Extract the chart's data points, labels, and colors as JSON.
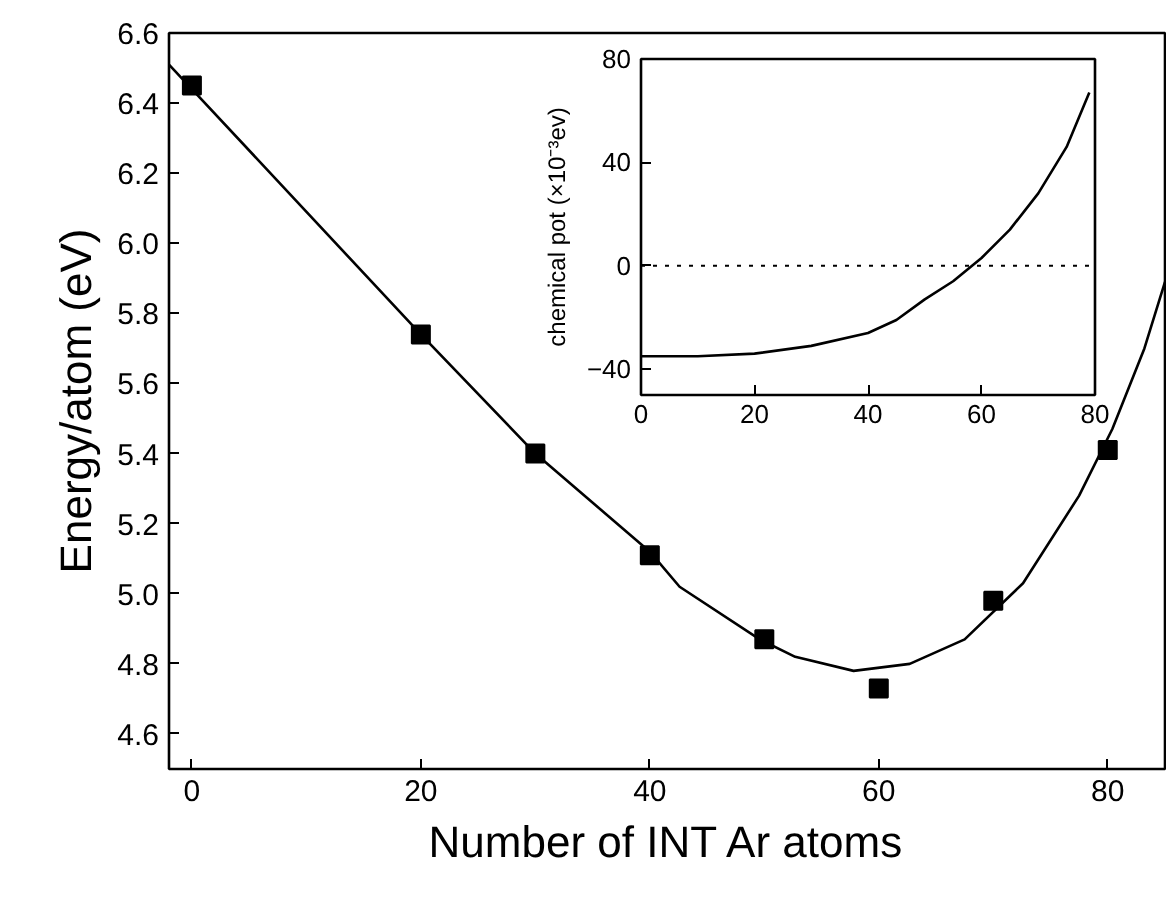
{
  "chart_data": [
    {
      "type": "scatter",
      "xlabel": "Number of INT Ar atoms",
      "ylabel": "Energy/atom (eV)",
      "xlim": [
        -2,
        85
      ],
      "ylim": [
        4.5,
        6.6
      ],
      "xticks": [
        0,
        20,
        40,
        60,
        80
      ],
      "yticks": [
        {
          "value": 4.6,
          "label": "4.6"
        },
        {
          "value": 4.8,
          "label": "4.8"
        },
        {
          "value": 5.0,
          "label": "5.0"
        },
        {
          "value": 5.2,
          "label": "5.2"
        },
        {
          "value": 5.4,
          "label": "5.4"
        },
        {
          "value": 5.6,
          "label": "5.6"
        },
        {
          "value": 5.8,
          "label": "5.8"
        },
        {
          "value": 6.0,
          "label": "6.0"
        },
        {
          "value": 6.2,
          "label": "6.2"
        },
        {
          "value": 6.4,
          "label": "6.4"
        },
        {
          "value": 6.6,
          "label": "6.6"
        }
      ],
      "grid": false,
      "series": [
        {
          "marker": "square",
          "color": "#000000",
          "x": [
            0,
            20,
            30,
            40,
            50,
            60,
            70,
            80
          ],
          "values": [
            6.45,
            5.74,
            5.4,
            5.11,
            4.87,
            4.73,
            4.98,
            5.41
          ]
        },
        {
          "type": "line",
          "line_style": "solid",
          "color": "#000000",
          "x": [
            -2,
            0,
            20,
            30,
            40,
            42.6,
            49.6,
            52.7,
            57.8,
            62.7,
            67.5,
            72.6,
            77.5,
            80.4,
            83.2,
            85
          ],
          "values": [
            6.51,
            6.44,
            5.74,
            5.4,
            5.12,
            5.02,
            4.87,
            4.82,
            4.78,
            4.8,
            4.87,
            5.03,
            5.28,
            5.47,
            5.7,
            5.89
          ]
        }
      ]
    },
    {
      "type": "line",
      "ylabel": "chemical pot (×10⁻³ev)",
      "xlim": [
        0,
        80
      ],
      "ylim": [
        -50,
        80
      ],
      "xticks": [
        0,
        20,
        40,
        60,
        80
      ],
      "yticks": [
        -40,
        0,
        40,
        80
      ],
      "grid": false,
      "ref_lines": [
        {
          "axis": "y",
          "value": 0,
          "line_style": "dotted",
          "color": "#000000"
        }
      ],
      "series": [
        {
          "line_style": "solid",
          "color": "#000000",
          "x": [
            0,
            10,
            20,
            30,
            40,
            45,
            50,
            55,
            60,
            65,
            70,
            75,
            79
          ],
          "values": [
            -35,
            -35,
            -34,
            -31,
            -26,
            -21,
            -13,
            -6,
            3,
            14,
            28,
            46,
            67
          ]
        }
      ]
    }
  ]
}
